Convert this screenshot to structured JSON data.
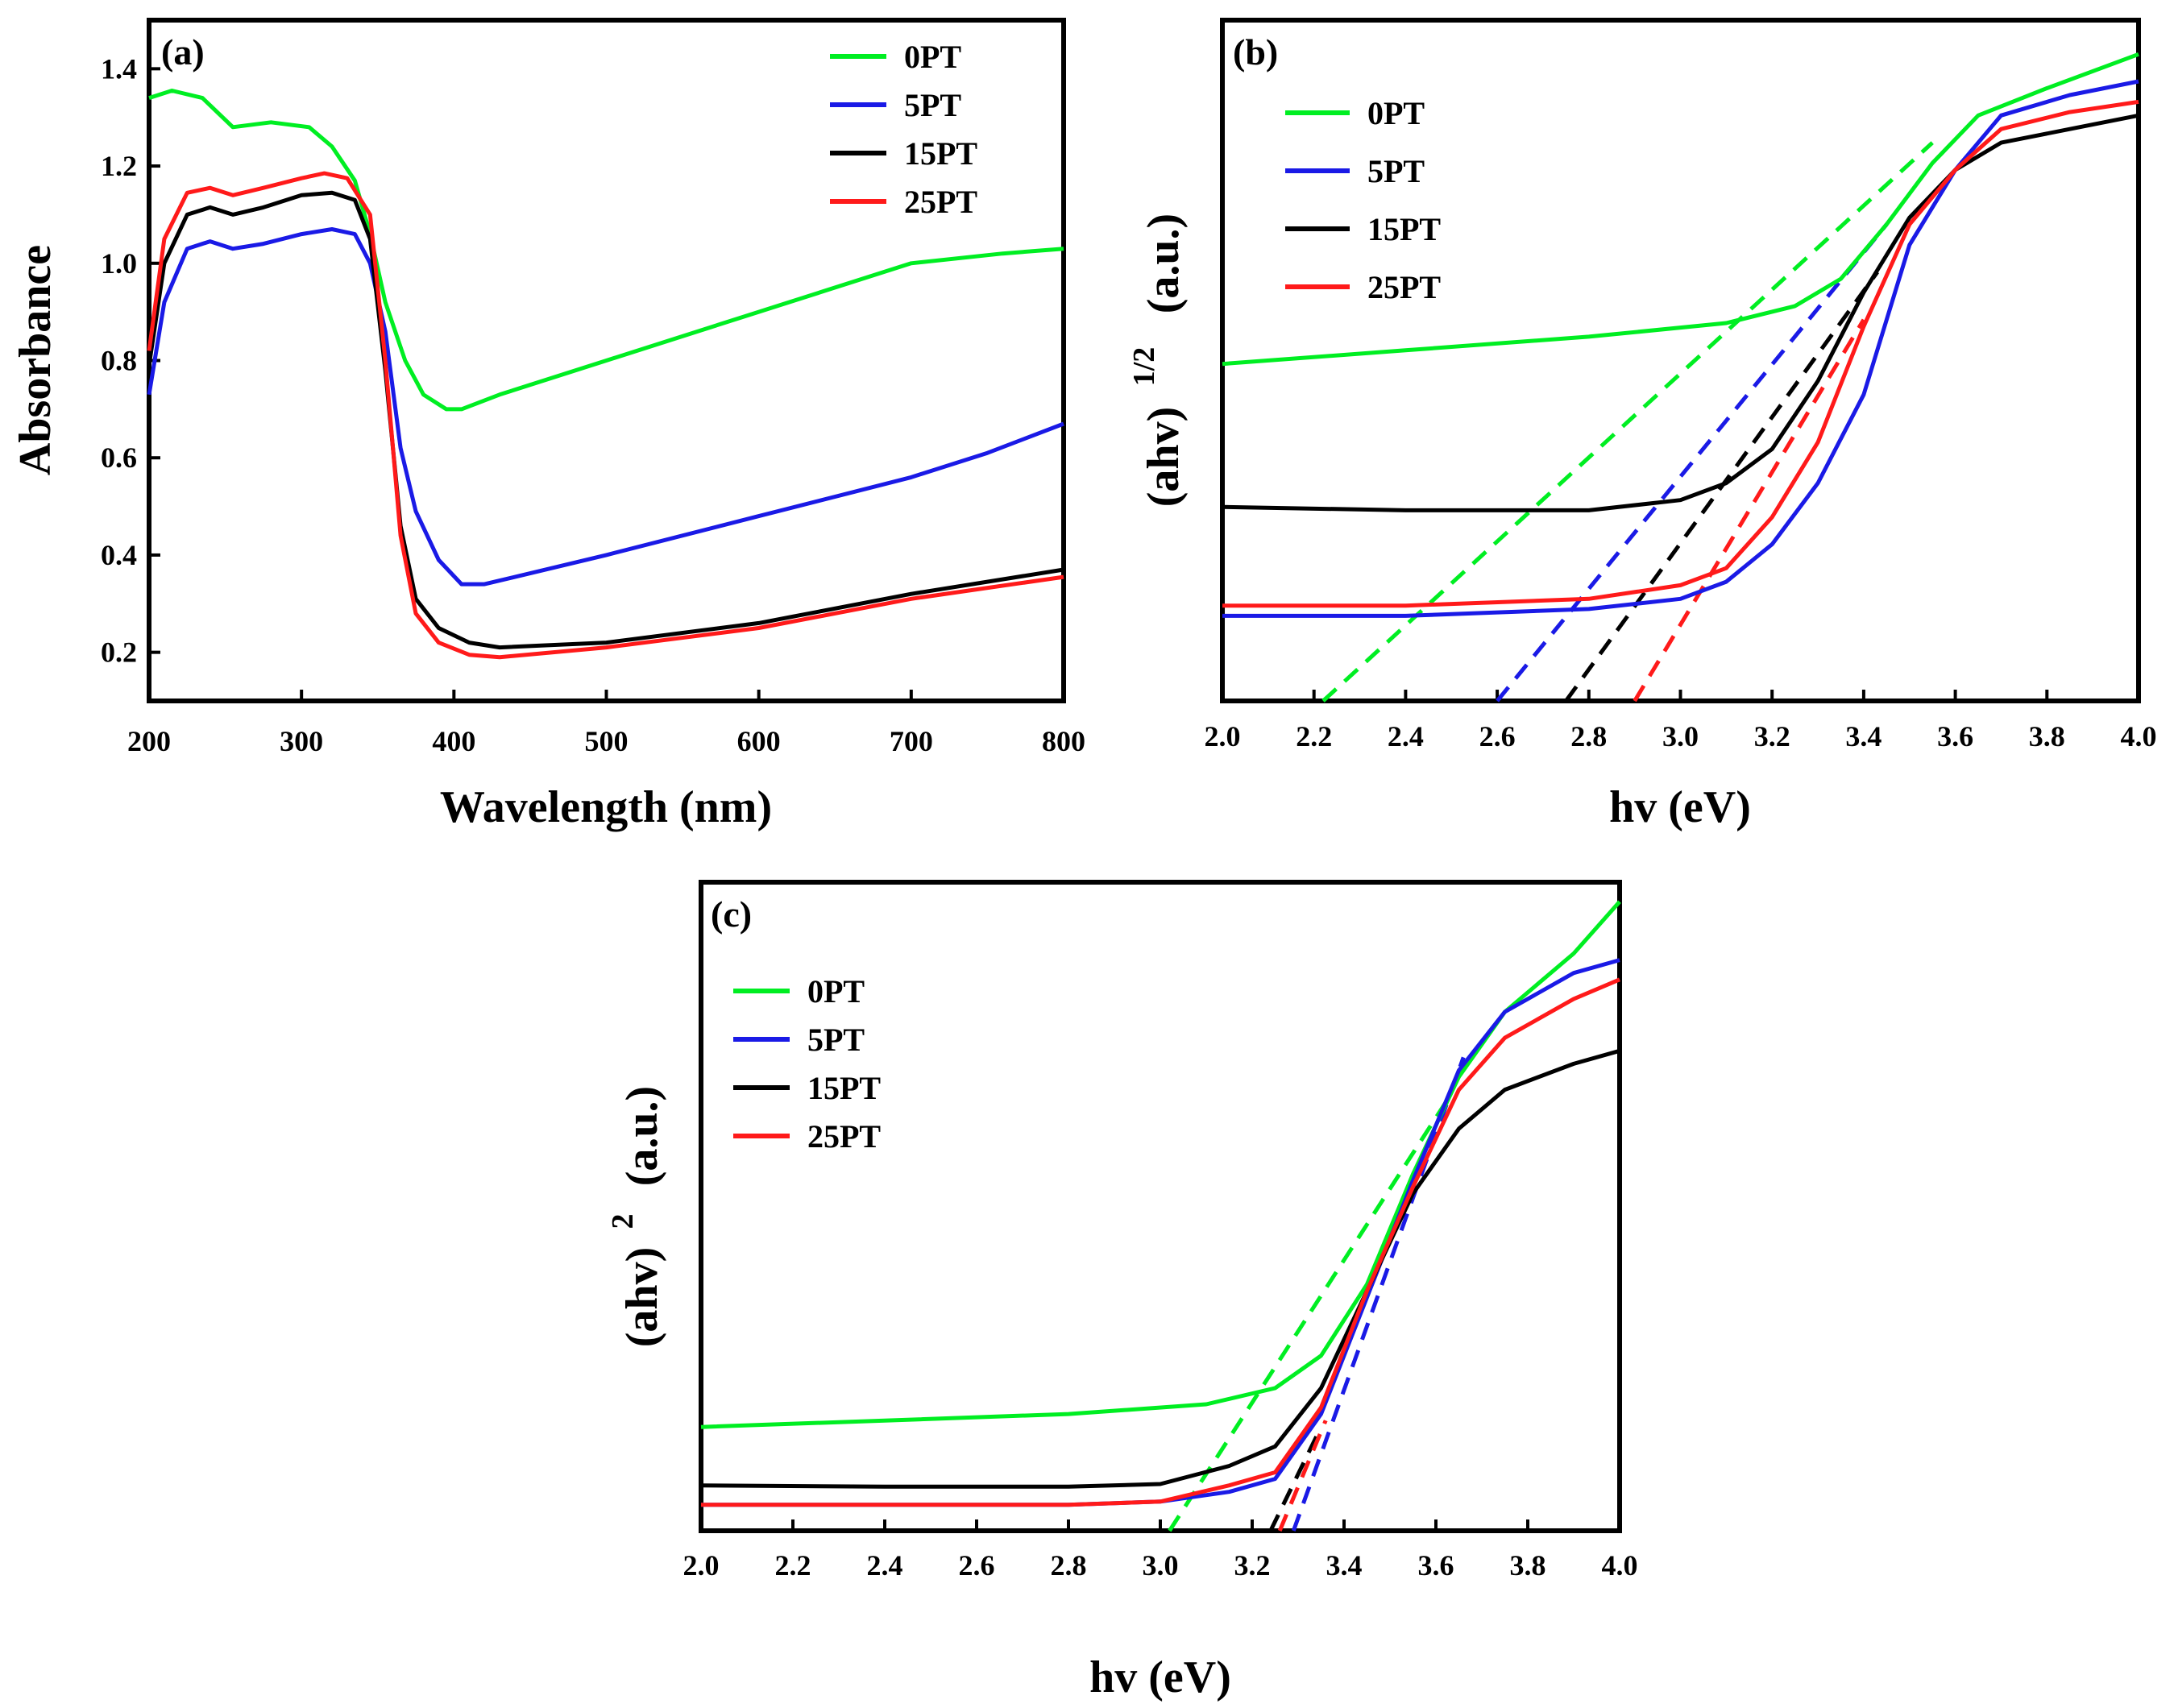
{
  "colors": {
    "0PT": "#00ee22",
    "5PT": "#1a1ae6",
    "15PT": "#000000",
    "25PT": "#ff1a1a"
  },
  "chart_data": [
    {
      "id": "a",
      "type": "line",
      "panel_label": "(a)",
      "xlabel": "Wavelength (nm)",
      "ylabel": "Absorbance",
      "xlim": [
        200,
        800
      ],
      "ylim": [
        0.1,
        1.5
      ],
      "xticks": [
        200,
        300,
        400,
        500,
        600,
        700,
        800
      ],
      "xtick_labels": [
        "200",
        "300",
        "400",
        "500",
        "600",
        "700",
        "800"
      ],
      "yticks": [
        0.2,
        0.4,
        0.6,
        0.8,
        1.0,
        1.2,
        1.4
      ],
      "ytick_labels": [
        "0.2",
        "0.4",
        "0.6",
        "0.8",
        "1.0",
        "1.2",
        "1.4"
      ],
      "legend_position": "top-right",
      "series": [
        {
          "name": "0PT",
          "points": [
            [
              200,
              1.34
            ],
            [
              215,
              1.355
            ],
            [
              235,
              1.34
            ],
            [
              255,
              1.28
            ],
            [
              280,
              1.29
            ],
            [
              305,
              1.28
            ],
            [
              320,
              1.24
            ],
            [
              335,
              1.17
            ],
            [
              345,
              1.06
            ],
            [
              355,
              0.92
            ],
            [
              368,
              0.8
            ],
            [
              380,
              0.73
            ],
            [
              395,
              0.7
            ],
            [
              405,
              0.7
            ],
            [
              430,
              0.73
            ],
            [
              500,
              0.8
            ],
            [
              600,
              0.9
            ],
            [
              700,
              1.0
            ],
            [
              760,
              1.02
            ],
            [
              800,
              1.03
            ]
          ]
        },
        {
          "name": "5PT",
          "points": [
            [
              200,
              0.73
            ],
            [
              210,
              0.92
            ],
            [
              225,
              1.03
            ],
            [
              240,
              1.045
            ],
            [
              255,
              1.03
            ],
            [
              275,
              1.04
            ],
            [
              300,
              1.06
            ],
            [
              320,
              1.07
            ],
            [
              335,
              1.06
            ],
            [
              345,
              1.0
            ],
            [
              355,
              0.86
            ],
            [
              365,
              0.62
            ],
            [
              375,
              0.49
            ],
            [
              390,
              0.39
            ],
            [
              405,
              0.34
            ],
            [
              420,
              0.34
            ],
            [
              500,
              0.4
            ],
            [
              600,
              0.48
            ],
            [
              700,
              0.56
            ],
            [
              750,
              0.61
            ],
            [
              800,
              0.67
            ]
          ]
        },
        {
          "name": "15PT",
          "points": [
            [
              200,
              0.79
            ],
            [
              210,
              1.0
            ],
            [
              225,
              1.1
            ],
            [
              240,
              1.115
            ],
            [
              255,
              1.1
            ],
            [
              275,
              1.115
            ],
            [
              300,
              1.14
            ],
            [
              320,
              1.145
            ],
            [
              335,
              1.13
            ],
            [
              345,
              1.05
            ],
            [
              355,
              0.78
            ],
            [
              365,
              0.46
            ],
            [
              375,
              0.31
            ],
            [
              390,
              0.25
            ],
            [
              410,
              0.22
            ],
            [
              430,
              0.21
            ],
            [
              500,
              0.22
            ],
            [
              600,
              0.26
            ],
            [
              700,
              0.32
            ],
            [
              800,
              0.37
            ]
          ]
        },
        {
          "name": "25PT",
          "points": [
            [
              200,
              0.82
            ],
            [
              210,
              1.05
            ],
            [
              225,
              1.145
            ],
            [
              240,
              1.155
            ],
            [
              255,
              1.14
            ],
            [
              275,
              1.155
            ],
            [
              300,
              1.175
            ],
            [
              315,
              1.185
            ],
            [
              330,
              1.175
            ],
            [
              345,
              1.1
            ],
            [
              355,
              0.8
            ],
            [
              365,
              0.44
            ],
            [
              375,
              0.28
            ],
            [
              390,
              0.22
            ],
            [
              410,
              0.195
            ],
            [
              430,
              0.19
            ],
            [
              500,
              0.21
            ],
            [
              600,
              0.25
            ],
            [
              700,
              0.31
            ],
            [
              800,
              0.355
            ]
          ]
        }
      ]
    },
    {
      "id": "b",
      "type": "line",
      "panel_label": "(b)",
      "xlabel": "hv (eV)",
      "ylabel_main": "(ahv)",
      "ylabel_sup": "1/2",
      "ylabel_unit": "(a.u.)",
      "xlim": [
        2.0,
        4.0
      ],
      "ylim": [
        0,
        100
      ],
      "xticks": [
        2.0,
        2.2,
        2.4,
        2.6,
        2.8,
        3.0,
        3.2,
        3.4,
        3.6,
        3.8,
        4.0
      ],
      "xtick_labels": [
        "2.0",
        "2.2",
        "2.4",
        "2.6",
        "2.8",
        "3.0",
        "3.2",
        "3.4",
        "3.6",
        "3.8",
        "4.0"
      ],
      "legend_position": "top-left",
      "series": [
        {
          "name": "0PT",
          "points": [
            [
              2.0,
              49.5
            ],
            [
              2.4,
              51.5
            ],
            [
              2.8,
              53.5
            ],
            [
              3.1,
              55.5
            ],
            [
              3.25,
              58
            ],
            [
              3.35,
              62
            ],
            [
              3.45,
              70
            ],
            [
              3.55,
              79
            ],
            [
              3.65,
              86
            ],
            [
              3.8,
              90
            ],
            [
              4.0,
              95
            ]
          ]
        },
        {
          "name": "5PT",
          "points": [
            [
              2.0,
              12.5
            ],
            [
              2.4,
              12.5
            ],
            [
              2.8,
              13.5
            ],
            [
              3.0,
              15
            ],
            [
              3.1,
              17.5
            ],
            [
              3.2,
              23
            ],
            [
              3.3,
              32
            ],
            [
              3.4,
              45
            ],
            [
              3.5,
              67
            ],
            [
              3.6,
              78
            ],
            [
              3.7,
              86
            ],
            [
              3.85,
              89
            ],
            [
              4.0,
              91
            ]
          ]
        },
        {
          "name": "15PT",
          "points": [
            [
              2.0,
              28.5
            ],
            [
              2.4,
              28.0
            ],
            [
              2.8,
              28.0
            ],
            [
              3.0,
              29.5
            ],
            [
              3.1,
              32
            ],
            [
              3.2,
              37
            ],
            [
              3.3,
              47
            ],
            [
              3.4,
              60
            ],
            [
              3.5,
              71
            ],
            [
              3.6,
              78
            ],
            [
              3.7,
              82
            ],
            [
              3.85,
              84
            ],
            [
              4.0,
              86
            ]
          ]
        },
        {
          "name": "25PT",
          "points": [
            [
              2.0,
              14
            ],
            [
              2.4,
              14
            ],
            [
              2.8,
              15
            ],
            [
              3.0,
              17
            ],
            [
              3.1,
              19.5
            ],
            [
              3.2,
              27
            ],
            [
              3.3,
              38
            ],
            [
              3.4,
              55
            ],
            [
              3.5,
              70
            ],
            [
              3.6,
              78
            ],
            [
              3.7,
              84
            ],
            [
              3.85,
              86.5
            ],
            [
              4.0,
              88
            ]
          ]
        }
      ],
      "fits": [
        {
          "name": "0PT",
          "from": [
            2.22,
            0
          ],
          "to": [
            3.55,
            82
          ]
        },
        {
          "name": "5PT",
          "from": [
            2.6,
            0
          ],
          "to": [
            3.45,
            70
          ]
        },
        {
          "name": "15PT",
          "from": [
            2.75,
            0
          ],
          "to": [
            3.43,
            63
          ]
        },
        {
          "name": "25PT",
          "from": [
            2.9,
            0
          ],
          "to": [
            3.4,
            56
          ]
        }
      ]
    },
    {
      "id": "c",
      "type": "line",
      "panel_label": "(c)",
      "xlabel": "hv (eV)",
      "ylabel_main": "(ahv)",
      "ylabel_sup": "2",
      "ylabel_unit": "(a.u.)",
      "xlim": [
        2.0,
        4.0
      ],
      "ylim": [
        0,
        100
      ],
      "xticks": [
        2.0,
        2.2,
        2.4,
        2.6,
        2.8,
        3.0,
        3.2,
        3.4,
        3.6,
        3.8,
        4.0
      ],
      "xtick_labels": [
        "2.0",
        "2.2",
        "2.4",
        "2.6",
        "2.8",
        "3.0",
        "3.2",
        "3.4",
        "3.6",
        "3.8",
        "4.0"
      ],
      "legend_position": "top-left",
      "series": [
        {
          "name": "0PT",
          "points": [
            [
              2.0,
              16
            ],
            [
              2.4,
              17
            ],
            [
              2.8,
              18
            ],
            [
              3.1,
              19.5
            ],
            [
              3.25,
              22
            ],
            [
              3.35,
              27
            ],
            [
              3.45,
              38
            ],
            [
              3.55,
              55
            ],
            [
              3.65,
              70
            ],
            [
              3.75,
              80
            ],
            [
              3.9,
              89
            ],
            [
              4.0,
              97
            ]
          ]
        },
        {
          "name": "5PT",
          "points": [
            [
              2.0,
              4
            ],
            [
              2.4,
              4
            ],
            [
              2.8,
              4
            ],
            [
              3.0,
              4.5
            ],
            [
              3.15,
              6
            ],
            [
              3.25,
              8
            ],
            [
              3.35,
              18
            ],
            [
              3.45,
              36
            ],
            [
              3.55,
              54
            ],
            [
              3.65,
              71
            ],
            [
              3.75,
              80
            ],
            [
              3.9,
              86
            ],
            [
              4.0,
              88
            ]
          ]
        },
        {
          "name": "15PT",
          "points": [
            [
              2.0,
              7
            ],
            [
              2.4,
              6.8
            ],
            [
              2.8,
              6.8
            ],
            [
              3.0,
              7.2
            ],
            [
              3.15,
              10
            ],
            [
              3.25,
              13
            ],
            [
              3.35,
              22
            ],
            [
              3.45,
              37
            ],
            [
              3.55,
              52
            ],
            [
              3.65,
              62
            ],
            [
              3.75,
              68
            ],
            [
              3.9,
              72
            ],
            [
              4.0,
              74
            ]
          ]
        },
        {
          "name": "25PT",
          "points": [
            [
              2.0,
              4
            ],
            [
              2.4,
              4
            ],
            [
              2.8,
              4
            ],
            [
              3.0,
              4.5
            ],
            [
              3.15,
              7
            ],
            [
              3.25,
              9
            ],
            [
              3.35,
              19
            ],
            [
              3.45,
              37
            ],
            [
              3.55,
              53
            ],
            [
              3.65,
              68
            ],
            [
              3.75,
              76
            ],
            [
              3.9,
              82
            ],
            [
              4.0,
              85
            ]
          ]
        }
      ],
      "fits": [
        {
          "name": "0PT",
          "from": [
            3.02,
            0
          ],
          "to": [
            3.63,
            67
          ]
        },
        {
          "name": "5PT",
          "from": [
            3.29,
            0
          ],
          "to": [
            3.66,
            73
          ]
        },
        {
          "name": "15PT",
          "from": [
            3.24,
            0
          ],
          "to": [
            3.35,
            16
          ]
        },
        {
          "name": "25PT",
          "from": [
            3.26,
            0
          ],
          "to": [
            3.36,
            17
          ]
        }
      ]
    }
  ]
}
